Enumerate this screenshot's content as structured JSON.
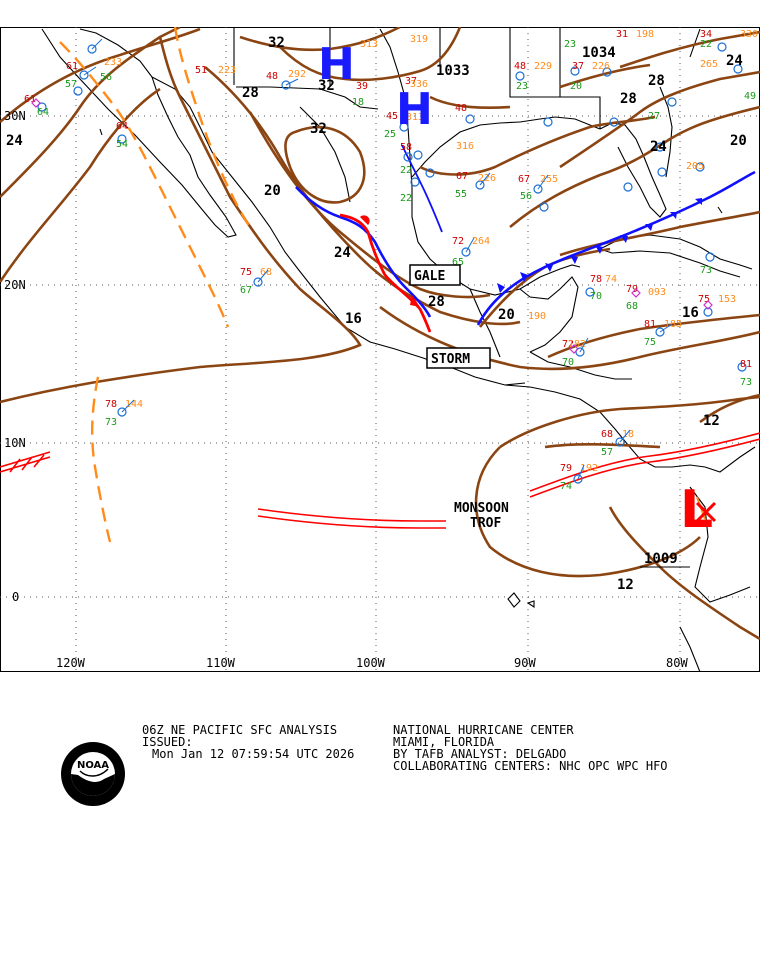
{
  "map": {
    "lat_labels": [
      "30N",
      "20N",
      "10N",
      "0"
    ],
    "lon_labels": [
      "120W",
      "110W",
      "100W",
      "90W",
      "80W"
    ],
    "isobars": [
      "32",
      "32",
      "32",
      "24",
      "28",
      "20",
      "24",
      "16",
      "28",
      "20",
      "16",
      "12",
      "12",
      "24",
      "20",
      "28",
      "28",
      "24"
    ],
    "pressure_values": {
      "high1": "1033",
      "high2": "1034",
      "low1": "1009"
    },
    "centers": {
      "high": "H",
      "low": "L"
    },
    "warnings": {
      "gale": "GALE",
      "storm": "STORM"
    },
    "features": {
      "monsoon_line1": "MONSOON",
      "monsoon_line2": "TROF"
    },
    "colors": {
      "isobar": "#8B4513",
      "cold_front": "#1010ff",
      "warm_front": "#ff0000",
      "high": "#1a1aff",
      "low": "#ff0000",
      "ridge": "#ff8c1a"
    }
  },
  "footer": {
    "product_line": "06Z NE PACIFIC SFC ANALYSIS",
    "issued_label": "ISSUED:",
    "issued_time": "Mon Jan 12 07:59:54 UTC 2026",
    "center_name": "NATIONAL HURRICANE CENTER",
    "location": "MIAMI, FLORIDA",
    "analyst": "BY TAFB ANALYST: DELGADO",
    "collaborating": "COLLABORATING CENTERS: NHC OPC WPC HFO",
    "logo_text": "NOAA"
  }
}
